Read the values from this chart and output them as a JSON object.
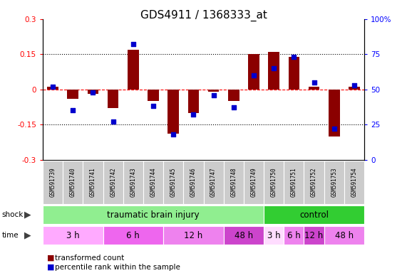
{
  "title": "GDS4911 / 1368333_at",
  "samples": [
    "GSM591739",
    "GSM591740",
    "GSM591741",
    "GSM591742",
    "GSM591743",
    "GSM591744",
    "GSM591745",
    "GSM591746",
    "GSM591747",
    "GSM591748",
    "GSM591749",
    "GSM591750",
    "GSM591751",
    "GSM591752",
    "GSM591753",
    "GSM591754"
  ],
  "bar_values": [
    0.01,
    -0.04,
    -0.02,
    -0.08,
    0.17,
    -0.05,
    -0.19,
    -0.1,
    -0.01,
    -0.05,
    0.15,
    0.16,
    0.14,
    0.01,
    -0.2,
    0.01
  ],
  "dot_values": [
    52,
    35,
    48,
    27,
    82,
    38,
    18,
    32,
    46,
    37,
    60,
    65,
    73,
    55,
    22,
    53
  ],
  "bar_color": "#8B0000",
  "dot_color": "#0000CD",
  "ylim_left": [
    -0.3,
    0.3
  ],
  "ylim_right": [
    0,
    100
  ],
  "yticks_left": [
    -0.3,
    -0.15,
    0.0,
    0.15,
    0.3
  ],
  "yticks_right": [
    0,
    25,
    50,
    75,
    100
  ],
  "ytick_labels_left": [
    "-0.3",
    "-0.15",
    "0",
    "0.15",
    "0.3"
  ],
  "ytick_labels_right": [
    "0",
    "25",
    "50",
    "75",
    "100%"
  ],
  "hline_y": [
    0.15,
    -0.15
  ],
  "shock_row": [
    {
      "label": "traumatic brain injury",
      "start": 0,
      "end": 11,
      "color": "#90EE90"
    },
    {
      "label": "control",
      "start": 11,
      "end": 16,
      "color": "#32CD32"
    }
  ],
  "time_row": [
    {
      "label": "3 h",
      "start": 0,
      "end": 3,
      "color": "#FFAAFF"
    },
    {
      "label": "6 h",
      "start": 3,
      "end": 6,
      "color": "#EE66EE"
    },
    {
      "label": "12 h",
      "start": 6,
      "end": 9,
      "color": "#EE82EE"
    },
    {
      "label": "48 h",
      "start": 9,
      "end": 11,
      "color": "#CC44CC"
    },
    {
      "label": "3 h",
      "start": 11,
      "end": 12,
      "color": "#FFDDFF"
    },
    {
      "label": "6 h",
      "start": 12,
      "end": 13,
      "color": "#EE82EE"
    },
    {
      "label": "12 h",
      "start": 13,
      "end": 14,
      "color": "#CC44CC"
    },
    {
      "label": "48 h",
      "start": 14,
      "end": 16,
      "color": "#EE82EE"
    }
  ],
  "legend_items": [
    {
      "label": "transformed count",
      "color": "#8B0000"
    },
    {
      "label": "percentile rank within the sample",
      "color": "#0000CD"
    }
  ],
  "bg_color": "#FFFFFF",
  "sample_bg_color": "#CCCCCC",
  "title_fontsize": 11,
  "tick_fontsize": 7.5,
  "label_fontsize": 8.5
}
